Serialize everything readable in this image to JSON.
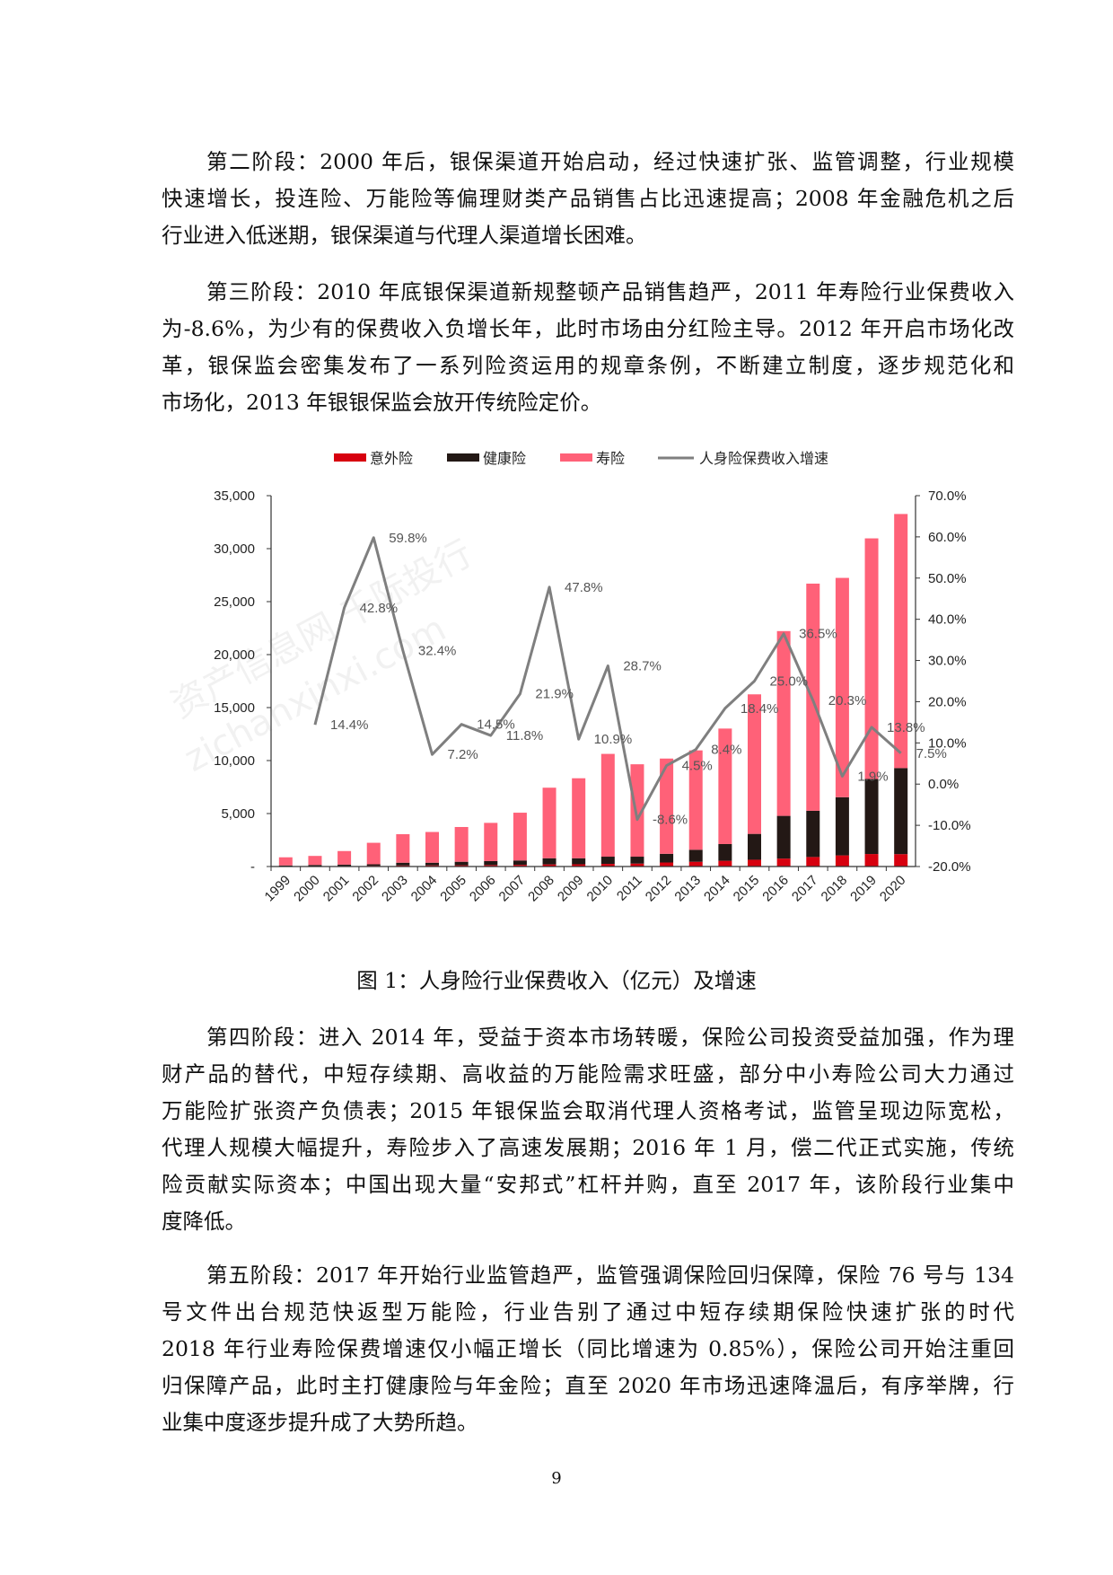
{
  "paragraphs": [
    {
      "lines": [
        "第二阶段：2000 年后，银保渠道开始启动，经过快速扩张、监管调整，行业规模",
        "快速增长，投连险、万能险等偏理财类产品销售占比迅速提高；2008 年金融危机之后",
        "行业进入低迷期，银保渠道与代理人渠道增长困难。"
      ]
    },
    {
      "lines": [
        "第三阶段：2010 年底银保渠道新规整顿产品销售趋严，2011 年寿险行业保费收入",
        "为-8.6%，为少有的保费收入负增长年，此时市场由分红险主导。2012 年开启市场化改",
        "革，银保监会密集发布了一系列险资运用的规章条例，不断建立制度，逐步规范化和",
        "市场化，2013 年银银保监会放开传统险定价。"
      ]
    },
    {
      "lines": [
        "第四阶段：进入 2014 年，受益于资本市场转暖，保险公司投资受益加强，作为理",
        "财产品的替代，中短存续期、高收益的万能险需求旺盛，部分中小寿险公司大力通过",
        "万能险扩张资产负债表；2015 年银保监会取消代理人资格考试，监管呈现边际宽松，",
        "代理人规模大幅提升，寿险步入了高速发展期；2016 年 1 月，偿二代正式实施，传统",
        "险贡献实际资本；中国出现大量“安邦式”杠杆并购，直至 2017 年，该阶段行业集中",
        "度降低。"
      ]
    },
    {
      "lines": [
        "第五阶段：2017 年开始行业监管趋严，监管强调保险回归保障，保险 76 号与 134",
        "号文件出台规范快返型万能险，行业告别了通过中短存续期保险快速扩张的时代",
        "2018 年行业寿险保费增速仅小幅正增长（同比增速为 0.85%），保险公司开始注重回",
        "归保障产品，此时主打健康险与年金险；直至 2020 年市场迅速降温后，有序举牌，行",
        "业集中度逐步提升成了大势所趋。"
      ]
    }
  ],
  "caption": "图 1：人身险行业保费收入（亿元）及增速",
  "page_number": "9",
  "watermark": [
    "资产信息网 千际投行",
    "zichanxinxi.com"
  ],
  "chart_data": {
    "type": "bar+line",
    "stacked": true,
    "categories": [
      "1999",
      "2000",
      "2001",
      "2002",
      "2003",
      "2004",
      "2005",
      "2006",
      "2007",
      "2008",
      "2009",
      "2010",
      "2011",
      "2012",
      "2013",
      "2014",
      "2015",
      "2016",
      "2017",
      "2018",
      "2019",
      "2020"
    ],
    "series": [
      {
        "name": "意外险",
        "type": "bar",
        "axis": "left",
        "color": "#D7000F",
        "values": [
          30,
          40,
          50,
          70,
          100,
          110,
          120,
          140,
          160,
          200,
          210,
          250,
          280,
          380,
          450,
          540,
          640,
          750,
          900,
          1050,
          1180,
          1170
        ]
      },
      {
        "name": "健康险",
        "type": "bar",
        "axis": "left",
        "color": "#231815",
        "values": [
          70,
          110,
          130,
          140,
          260,
          250,
          330,
          370,
          410,
          580,
          570,
          680,
          650,
          820,
          1130,
          1580,
          2440,
          4030,
          4360,
          5490,
          7090,
          8120
        ]
      },
      {
        "name": "寿险",
        "type": "bar",
        "axis": "left",
        "color": "#FF6178",
        "values": [
          770,
          850,
          1280,
          2030,
          2690,
          2900,
          3280,
          3610,
          4510,
          6660,
          7550,
          9700,
          8720,
          8990,
          9380,
          10900,
          13170,
          17440,
          21440,
          20700,
          22700,
          23980
        ]
      },
      {
        "name": "人身险保费收入增速",
        "type": "line",
        "axis": "right",
        "color": "#7F7F7F",
        "x": [
          "2000",
          "2001",
          "2002",
          "2003",
          "2004",
          "2005",
          "2006",
          "2007",
          "2008",
          "2009",
          "2010",
          "2011",
          "2012",
          "2013",
          "2014",
          "2015",
          "2016",
          "2017",
          "2018",
          "2019",
          "2020"
        ],
        "values": [
          14.4,
          42.8,
          59.8,
          32.4,
          7.2,
          14.5,
          11.8,
          21.9,
          47.8,
          10.9,
          28.7,
          -8.6,
          4.5,
          8.4,
          18.4,
          25.0,
          36.5,
          20.3,
          1.9,
          13.8,
          7.5
        ],
        "labels": [
          "14.4%",
          "42.8%",
          "59.8%",
          "32.4%",
          "7.2%",
          "14.5%",
          "11.8%",
          "21.9%",
          "47.8%",
          "10.9%",
          "28.7%",
          "-8.6%",
          "4.5%",
          "8.4%",
          "18.4%",
          "25.0%",
          "36.5%",
          "20.3%",
          "1.9%",
          "13.8%",
          "7.5%"
        ]
      }
    ],
    "y_left": {
      "range": [
        0,
        35000
      ],
      "ticks": [
        0,
        5000,
        10000,
        15000,
        20000,
        25000,
        30000,
        35000
      ],
      "tick_labels": [
        "-",
        "5,000",
        "10,000",
        "15,000",
        "20,000",
        "25,000",
        "30,000",
        "35,000"
      ]
    },
    "y_right": {
      "range": [
        -20,
        70
      ],
      "ticks": [
        -20,
        -10,
        0,
        10,
        20,
        30,
        40,
        50,
        60,
        70
      ],
      "tick_labels": [
        "-20.0%",
        "-10.0%",
        "0.0%",
        "10.0%",
        "20.0%",
        "30.0%",
        "40.0%",
        "50.0%",
        "60.0%",
        "70.0%"
      ]
    },
    "legend_position": "top",
    "grid": false
  }
}
